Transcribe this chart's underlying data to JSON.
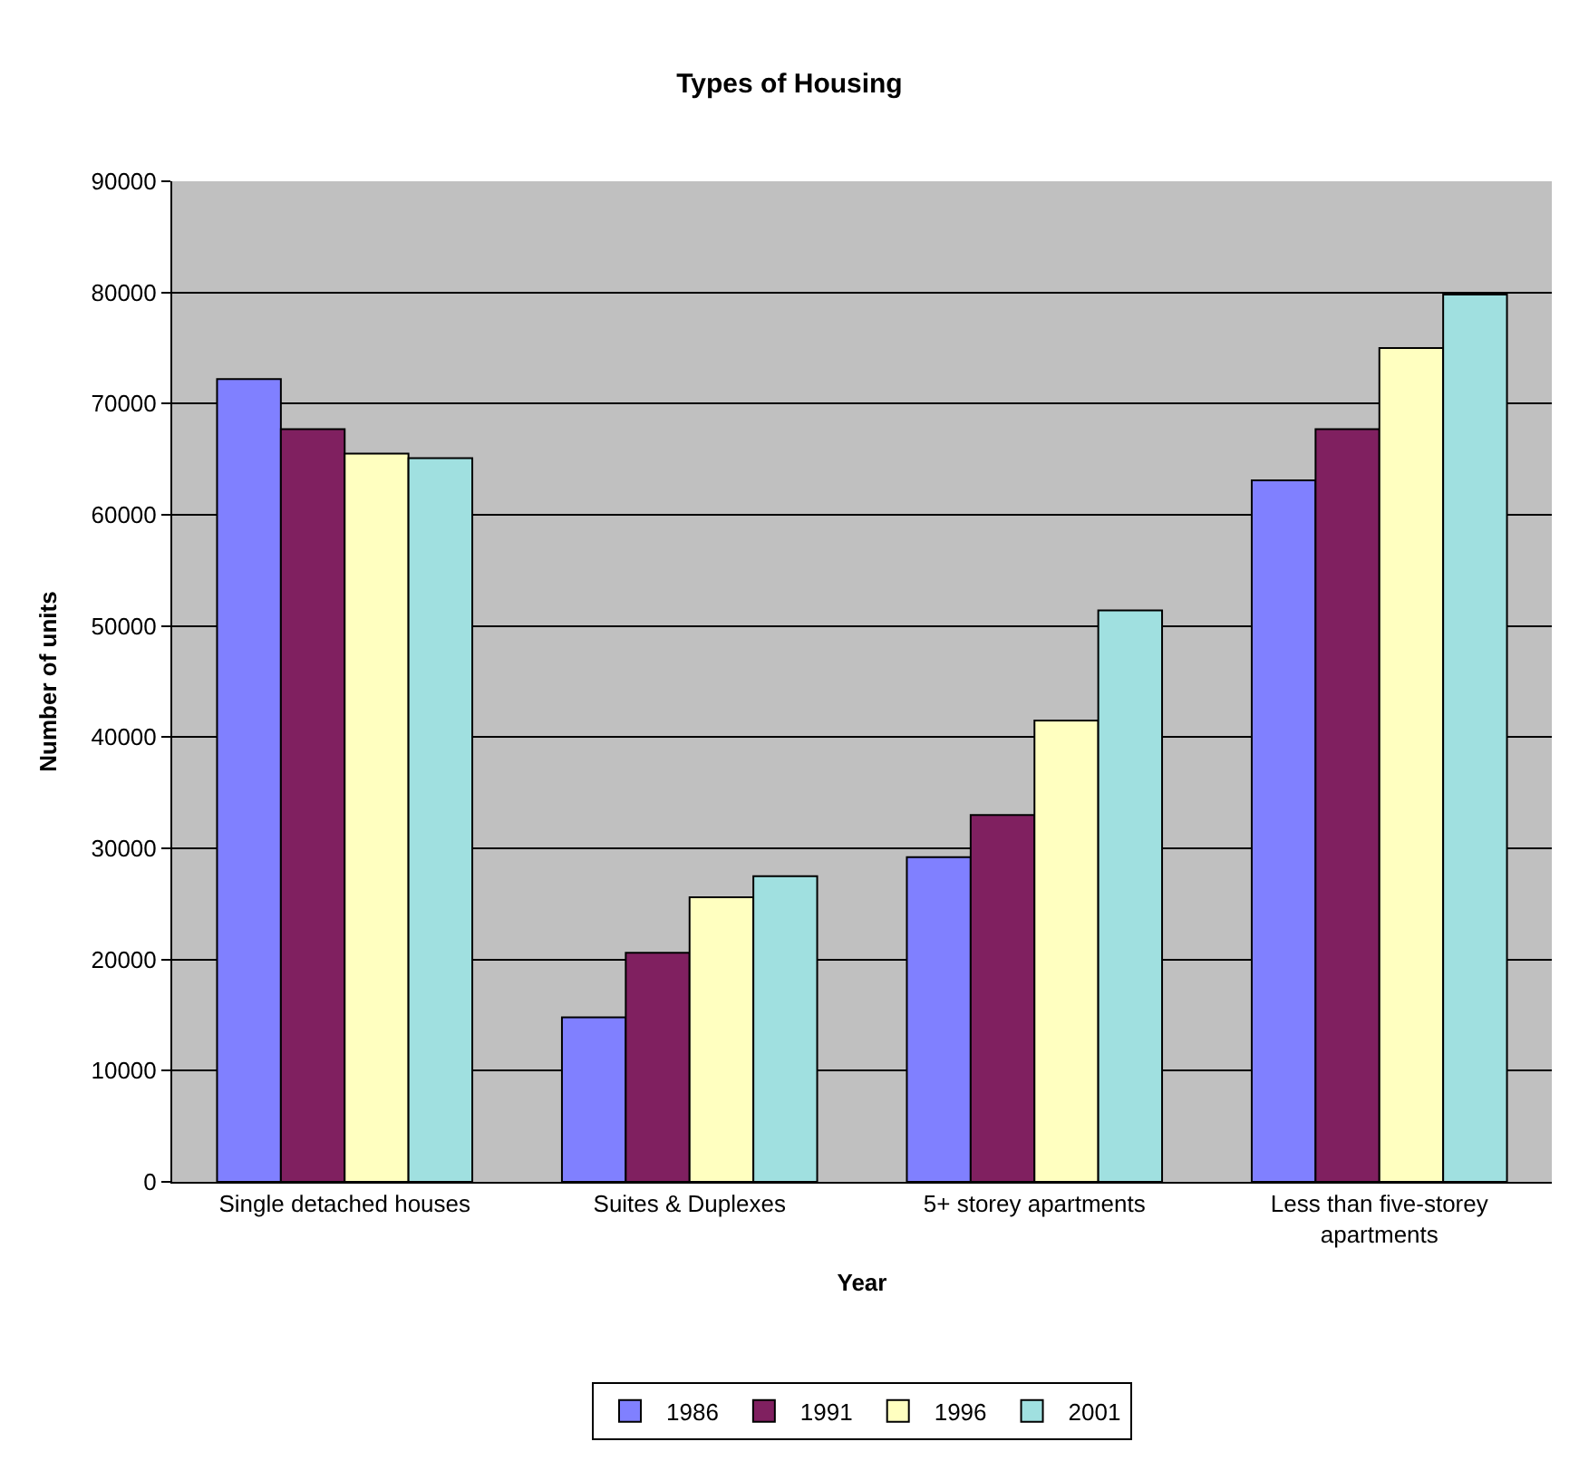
{
  "chart_data": {
    "type": "bar",
    "title": "Types of Housing",
    "xlabel": "Year",
    "ylabel": "Number of units",
    "categories": [
      "Single detached houses",
      "Suites & Duplexes",
      "5+ storey apartments",
      "Less than five-storey apartments"
    ],
    "series": [
      {
        "name": "1986",
        "color": "#8080ff",
        "values": [
          72200,
          14800,
          29200,
          63100
        ]
      },
      {
        "name": "1991",
        "color": "#802060",
        "values": [
          67700,
          20600,
          33000,
          67700
        ]
      },
      {
        "name": "1996",
        "color": "#ffffc0",
        "values": [
          65500,
          25600,
          41500,
          75000
        ]
      },
      {
        "name": "2001",
        "color": "#a0e0e0",
        "values": [
          65100,
          27500,
          51400,
          79800
        ]
      }
    ],
    "ylim": [
      0,
      90000
    ],
    "yticks": [
      0,
      10000,
      20000,
      30000,
      40000,
      50000,
      60000,
      70000,
      80000,
      90000
    ],
    "grid": "y",
    "legend": "bottom"
  }
}
